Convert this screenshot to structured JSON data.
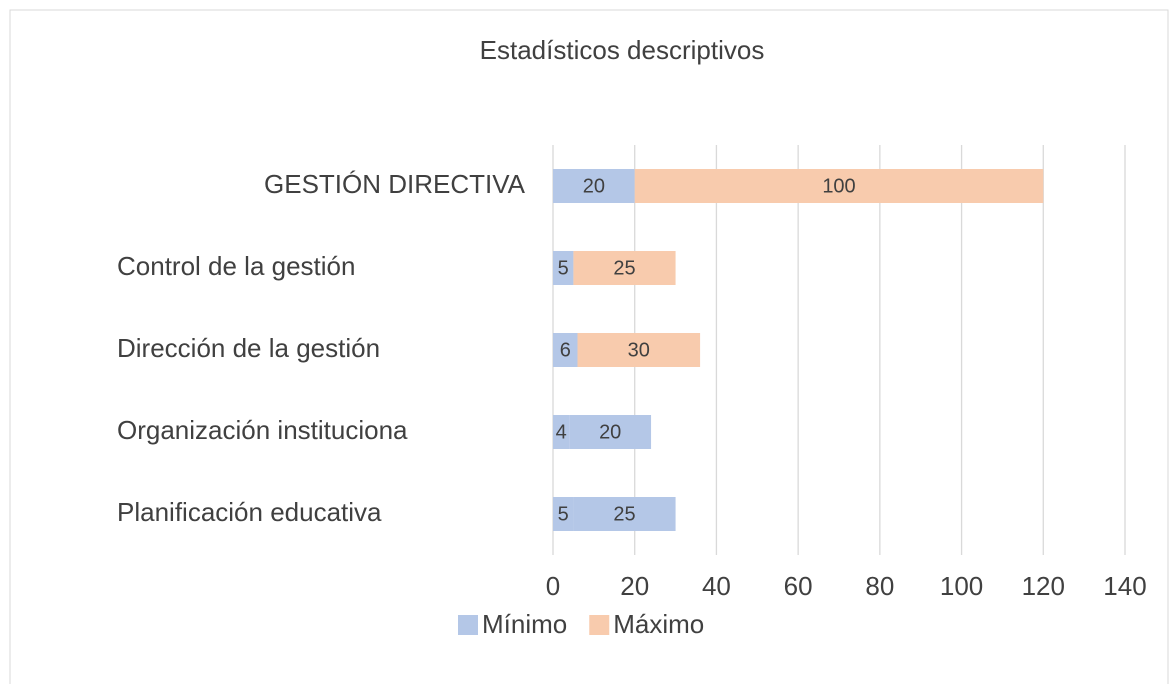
{
  "chart_data": {
    "type": "stacked-barh",
    "title": "Estadísticos descriptivos",
    "categories": [
      "GESTIÓN DIRECTIVA",
      "Control de la gestión",
      "Dirección de la gestión",
      "Organización instituciona",
      "Planificación educativa"
    ],
    "series": [
      {
        "name": "Mínimo",
        "color": "#b4c7e7",
        "values": [
          20,
          5,
          6,
          4,
          5
        ]
      },
      {
        "name": "Máximo",
        "color": "#f8cbad",
        "values": [
          100,
          25,
          30,
          20,
          25
        ],
        "colors": [
          "#f8cbad",
          "#f8cbad",
          "#f8cbad",
          "#b4c7e7",
          "#b4c7e7"
        ]
      }
    ],
    "xlim": [
      0,
      140
    ],
    "xticks": [
      0,
      20,
      40,
      60,
      80,
      100,
      120,
      140
    ],
    "grid": true,
    "legend": "bottom"
  }
}
